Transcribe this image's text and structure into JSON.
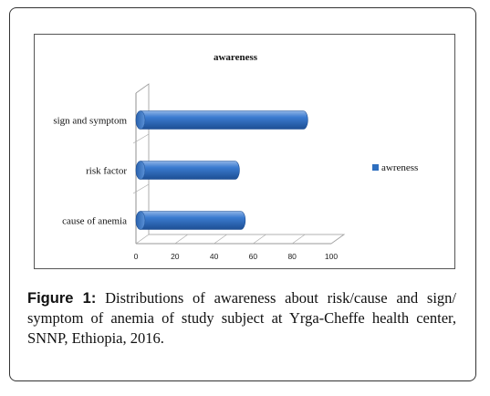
{
  "figure": {
    "label": "Figure 1:",
    "caption": "Distributions of awareness about risk/cause and sign/ symptom of anemia of study subject at Yrga-Cheffe health center, SNNP, Ethiopia, 2016."
  },
  "chart_data": {
    "type": "bar",
    "orientation": "horizontal",
    "style": "3d-cylinder",
    "title": "awareness",
    "categories": [
      "sign and symptom",
      "risk factor",
      "cause of anemia"
    ],
    "series": [
      {
        "name": "awreness",
        "values": [
          88,
          53,
          56
        ],
        "color": "#2e6fbf"
      }
    ],
    "xlabel": "",
    "ylabel": "",
    "xlim": [
      0,
      100
    ],
    "x_ticks": [
      "0",
      "20",
      "40",
      "60",
      "80",
      "100"
    ],
    "legend_position": "right",
    "grid": false
  }
}
